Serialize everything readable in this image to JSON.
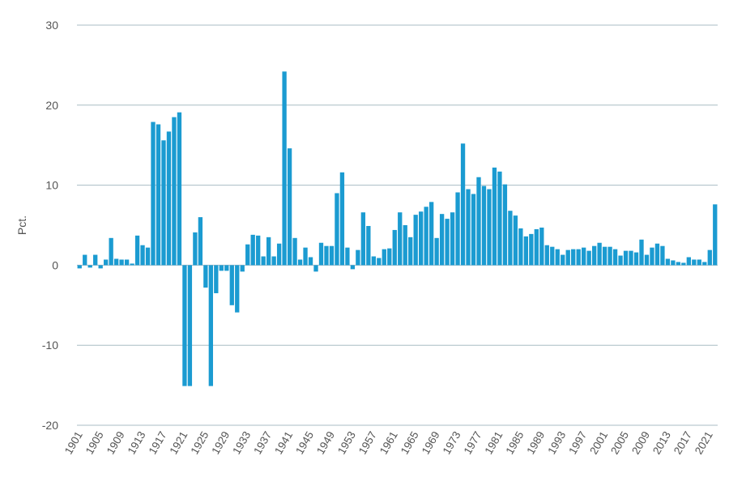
{
  "chart_data": {
    "type": "bar",
    "title": "",
    "xlabel": "",
    "ylabel": "Pct.",
    "ylim": [
      -20,
      30
    ],
    "yticks": [
      -20,
      -10,
      0,
      10,
      20,
      30
    ],
    "grid": true,
    "bar_color": "#1b9bd1",
    "grid_color": "#a8bdc4",
    "x_tick_labels": [
      "1901",
      "1905",
      "1909",
      "1913",
      "1917",
      "1921",
      "1925",
      "1929",
      "1933",
      "1937",
      "1941",
      "1945",
      "1949",
      "1953",
      "1957",
      "1961",
      "1965",
      "1969",
      "1973",
      "1977",
      "1981",
      "1985",
      "1989",
      "1993",
      "1997",
      "2001",
      "2005",
      "2009",
      "2013",
      "2017",
      "2021"
    ],
    "categories": [
      1901,
      1902,
      1903,
      1904,
      1905,
      1906,
      1907,
      1908,
      1909,
      1910,
      1911,
      1912,
      1913,
      1914,
      1915,
      1916,
      1917,
      1918,
      1919,
      1920,
      1921,
      1922,
      1923,
      1924,
      1925,
      1926,
      1927,
      1928,
      1929,
      1930,
      1931,
      1932,
      1933,
      1934,
      1935,
      1936,
      1937,
      1938,
      1939,
      1940,
      1941,
      1942,
      1943,
      1944,
      1945,
      1946,
      1947,
      1948,
      1949,
      1950,
      1951,
      1952,
      1953,
      1954,
      1955,
      1956,
      1957,
      1958,
      1959,
      1960,
      1961,
      1962,
      1963,
      1964,
      1965,
      1966,
      1967,
      1968,
      1969,
      1970,
      1971,
      1972,
      1973,
      1974,
      1975,
      1976,
      1977,
      1978,
      1979,
      1980,
      1981,
      1982,
      1983,
      1984,
      1985,
      1986,
      1987,
      1988,
      1989,
      1990,
      1991,
      1992,
      1993,
      1994,
      1995,
      1996,
      1997,
      1998,
      1999,
      2000,
      2001,
      2002,
      2003,
      2004,
      2005,
      2006,
      2007,
      2008,
      2009,
      2010,
      2011,
      2012,
      2013,
      2014,
      2015,
      2016,
      2017,
      2018,
      2019,
      2020,
      2021,
      2022
    ],
    "values": [
      -0.4,
      1.3,
      -0.3,
      1.3,
      -0.4,
      0.7,
      3.4,
      0.8,
      0.7,
      0.7,
      0.2,
      3.7,
      2.5,
      2.2,
      17.9,
      17.6,
      15.6,
      16.7,
      18.5,
      19.1,
      -15.1,
      -15.1,
      4.1,
      6.0,
      -2.8,
      -15.1,
      -3.5,
      -0.7,
      -0.7,
      -5.0,
      -5.9,
      -0.8,
      2.6,
      3.8,
      3.7,
      1.1,
      3.5,
      1.1,
      2.7,
      24.2,
      14.6,
      3.4,
      0.7,
      2.2,
      1.0,
      -0.8,
      2.8,
      2.4,
      2.4,
      9.0,
      11.6,
      2.2,
      -0.5,
      1.9,
      6.6,
      4.9,
      1.1,
      0.9,
      2.0,
      2.1,
      4.4,
      6.6,
      5.0,
      3.5,
      6.3,
      6.7,
      7.3,
      7.9,
      3.4,
      6.4,
      5.8,
      6.6,
      9.1,
      15.2,
      9.5,
      8.9,
      11.0,
      9.9,
      9.5,
      12.2,
      11.7,
      10.1,
      6.8,
      6.2,
      4.6,
      3.6,
      3.9,
      4.5,
      4.7,
      2.5,
      2.3,
      2.0,
      1.3,
      1.9,
      2.0,
      2.0,
      2.2,
      1.8,
      2.4,
      2.8,
      2.3,
      2.3,
      2.0,
      1.2,
      1.8,
      1.8,
      1.6,
      3.2,
      1.3,
      2.2,
      2.7,
      2.4,
      0.8,
      0.6,
      0.4,
      0.3,
      1.0,
      0.7,
      0.7,
      0.4,
      1.9,
      7.6
    ]
  }
}
